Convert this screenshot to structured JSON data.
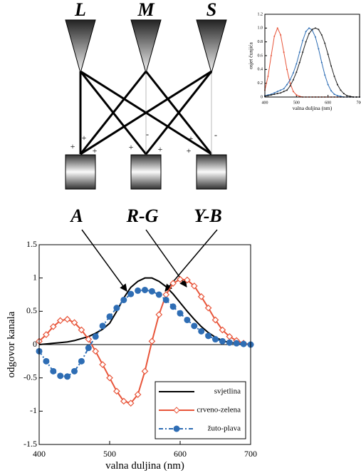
{
  "diagram": {
    "cones": [
      "L",
      "M",
      "S"
    ],
    "channels": [
      "A",
      "R-G",
      "Y-B"
    ],
    "signs": [
      "+",
      "+",
      "+",
      "+",
      "-",
      "+",
      "+",
      "+",
      "-"
    ]
  },
  "chart_data": [
    {
      "type": "line",
      "ylabel": "osjet čunjića",
      "xlabel": "valna duljina (nm)",
      "x": [
        400,
        410,
        420,
        430,
        440,
        450,
        460,
        470,
        480,
        490,
        500,
        510,
        520,
        530,
        540,
        550,
        560,
        570,
        580,
        590,
        600,
        610,
        620,
        630,
        640,
        650,
        660,
        670,
        680,
        690,
        700
      ],
      "xlim": [
        400,
        700
      ],
      "ylim": [
        0,
        1.2
      ],
      "xticks": [
        400,
        500,
        600,
        700
      ],
      "yticks": [
        0,
        0.2,
        0.4,
        0.6,
        0.8,
        {
          "value": 1,
          "label": "1.0"
        },
        1.2
      ],
      "series": [
        {
          "color": "#e8553a",
          "marker": "dot",
          "values": [
            0.1,
            0.3,
            0.6,
            0.88,
            1.0,
            0.9,
            0.65,
            0.4,
            0.2,
            0.08,
            0.03,
            0.01,
            0,
            0,
            0,
            0,
            0,
            0,
            0,
            0,
            0,
            0,
            0,
            0,
            0,
            0,
            0,
            0,
            0,
            0,
            0
          ]
        },
        {
          "color": "#2e6db4",
          "marker": "dot",
          "values": [
            0.02,
            0.03,
            0.04,
            0.06,
            0.08,
            0.1,
            0.12,
            0.18,
            0.25,
            0.35,
            0.48,
            0.65,
            0.82,
            0.95,
            1.0,
            0.97,
            0.87,
            0.7,
            0.5,
            0.32,
            0.18,
            0.09,
            0.04,
            0.02,
            0.01,
            0,
            0,
            0,
            0,
            0,
            0
          ]
        },
        {
          "color": "#222222",
          "marker": "dot",
          "values": [
            0.01,
            0.02,
            0.03,
            0.04,
            0.05,
            0.06,
            0.08,
            0.1,
            0.16,
            0.25,
            0.36,
            0.5,
            0.65,
            0.8,
            0.92,
            0.98,
            1.0,
            0.98,
            0.9,
            0.78,
            0.62,
            0.45,
            0.3,
            0.18,
            0.1,
            0.05,
            0.02,
            0.01,
            0,
            0,
            0
          ]
        }
      ]
    },
    {
      "type": "line",
      "ylabel": "odgovor kanala",
      "xlabel": "valna duljina (nm)",
      "x": [
        400,
        410,
        420,
        430,
        440,
        450,
        460,
        470,
        480,
        490,
        500,
        510,
        520,
        530,
        540,
        550,
        560,
        570,
        580,
        590,
        600,
        610,
        620,
        630,
        640,
        650,
        660,
        670,
        680,
        690,
        700
      ],
      "xlim": [
        400,
        700
      ],
      "ylim": [
        -1.5,
        1.5
      ],
      "xticks": [
        400,
        500,
        600,
        700
      ],
      "yticks": [
        -1.5,
        -1,
        -0.5,
        0,
        0.5,
        1,
        1.5
      ],
      "legend": "lower right",
      "series": [
        {
          "name": "svjetlina",
          "color": "#000000",
          "values": [
            0,
            0.01,
            0.02,
            0.03,
            0.04,
            0.06,
            0.09,
            0.12,
            0.17,
            0.23,
            0.32,
            0.5,
            0.7,
            0.86,
            0.95,
            1.0,
            1.0,
            0.95,
            0.87,
            0.76,
            0.63,
            0.5,
            0.38,
            0.27,
            0.18,
            0.11,
            0.06,
            0.03,
            0.02,
            0.01,
            0
          ]
        },
        {
          "name": "crveno-zelena",
          "color": "#e8553a",
          "marker": "diamond",
          "values": [
            0.05,
            0.15,
            0.27,
            0.36,
            0.38,
            0.33,
            0.22,
            0.08,
            -0.1,
            -0.3,
            -0.5,
            -0.7,
            -0.85,
            -0.88,
            -0.75,
            -0.4,
            0.05,
            0.45,
            0.75,
            0.92,
            0.98,
            0.97,
            0.88,
            0.72,
            0.55,
            0.37,
            0.22,
            0.12,
            0.06,
            0.02,
            0
          ]
        },
        {
          "name": "žuto-plava",
          "color": "#2e6db4",
          "marker": "circle",
          "linestyle": "dashdot",
          "values": [
            -0.1,
            -0.25,
            -0.4,
            -0.47,
            -0.48,
            -0.4,
            -0.25,
            -0.05,
            0.12,
            0.28,
            0.42,
            0.55,
            0.67,
            0.76,
            0.81,
            0.82,
            0.8,
            0.75,
            0.67,
            0.57,
            0.47,
            0.37,
            0.28,
            0.2,
            0.13,
            0.08,
            0.05,
            0.03,
            0.02,
            0.01,
            0
          ]
        }
      ]
    }
  ]
}
